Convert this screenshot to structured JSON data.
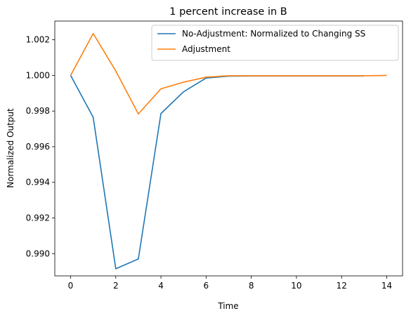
{
  "chart_data": {
    "type": "line",
    "title": "1 percent increase in B",
    "xlabel": "Time",
    "ylabel": "Normalized Output",
    "xlim": [
      -0.7,
      14.7
    ],
    "ylim": [
      0.98875,
      1.00305
    ],
    "xticks": [
      0,
      2,
      4,
      6,
      8,
      10,
      12,
      14
    ],
    "yticks": [
      0.99,
      0.992,
      0.994,
      0.996,
      0.998,
      1.0,
      1.002
    ],
    "ytick_labels": [
      "0.990",
      "0.992",
      "0.994",
      "0.996",
      "0.998",
      "1.000",
      "1.002"
    ],
    "grid": false,
    "legend_position": "top-right",
    "series": [
      {
        "name": "No-Adjustment: Normalized to Changing SS",
        "color": "#1f77b4",
        "x": [
          0,
          1,
          2,
          3,
          4,
          5,
          6,
          7,
          8,
          9,
          10,
          11,
          12,
          13
        ],
        "y": [
          1.0,
          0.99765,
          0.98915,
          0.9897,
          0.99786,
          0.99908,
          0.99985,
          0.99996,
          0.99997,
          0.99997,
          0.99997,
          0.99997,
          0.99997,
          0.99997
        ]
      },
      {
        "name": "Adjustment",
        "color": "#ff7f0e",
        "x": [
          0,
          1,
          2,
          3,
          4,
          5,
          6,
          7,
          8,
          9,
          10,
          11,
          12,
          13,
          14
        ],
        "y": [
          1.0,
          1.00235,
          1.00025,
          0.99784,
          0.99925,
          0.99962,
          0.9999,
          0.99998,
          0.99998,
          0.99998,
          0.99998,
          0.99998,
          0.99998,
          0.99998,
          1.0
        ]
      }
    ]
  }
}
